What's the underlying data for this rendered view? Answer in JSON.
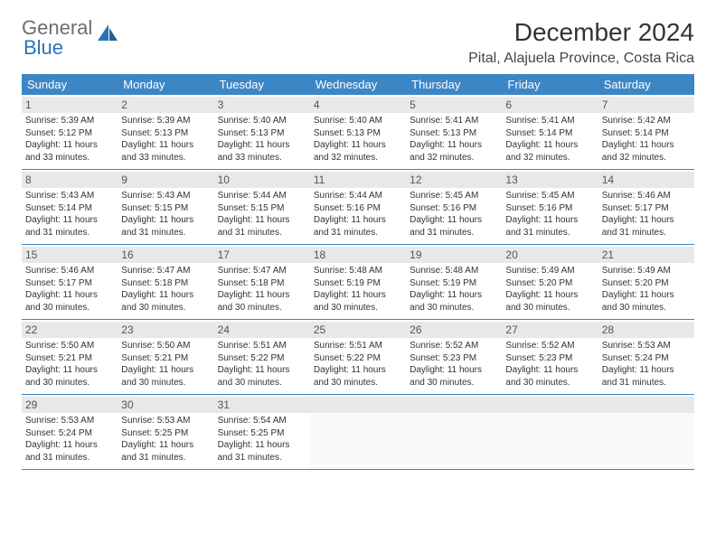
{
  "logo": {
    "part1": "General",
    "part2": "Blue"
  },
  "title": "December 2024",
  "location": "Pital, Alajuela Province, Costa Rica",
  "colors": {
    "header_bg": "#3d86c6",
    "header_text": "#ffffff",
    "daynum_bg": "#e8e8e8",
    "rule": "#3d86c6",
    "logo_gray": "#6d6d6d",
    "logo_blue": "#2873b8",
    "body_text": "#333333"
  },
  "typography": {
    "title_fontsize": 28,
    "subtitle_fontsize": 16,
    "dayhead_fontsize": 13,
    "daynum_fontsize": 12,
    "detail_fontsize": 10
  },
  "day_headers": [
    "Sunday",
    "Monday",
    "Tuesday",
    "Wednesday",
    "Thursday",
    "Friday",
    "Saturday"
  ],
  "weeks": [
    [
      {
        "num": "1",
        "sunrise": "Sunrise: 5:39 AM",
        "sunset": "Sunset: 5:12 PM",
        "daylight": "Daylight: 11 hours and 33 minutes."
      },
      {
        "num": "2",
        "sunrise": "Sunrise: 5:39 AM",
        "sunset": "Sunset: 5:13 PM",
        "daylight": "Daylight: 11 hours and 33 minutes."
      },
      {
        "num": "3",
        "sunrise": "Sunrise: 5:40 AM",
        "sunset": "Sunset: 5:13 PM",
        "daylight": "Daylight: 11 hours and 33 minutes."
      },
      {
        "num": "4",
        "sunrise": "Sunrise: 5:40 AM",
        "sunset": "Sunset: 5:13 PM",
        "daylight": "Daylight: 11 hours and 32 minutes."
      },
      {
        "num": "5",
        "sunrise": "Sunrise: 5:41 AM",
        "sunset": "Sunset: 5:13 PM",
        "daylight": "Daylight: 11 hours and 32 minutes."
      },
      {
        "num": "6",
        "sunrise": "Sunrise: 5:41 AM",
        "sunset": "Sunset: 5:14 PM",
        "daylight": "Daylight: 11 hours and 32 minutes."
      },
      {
        "num": "7",
        "sunrise": "Sunrise: 5:42 AM",
        "sunset": "Sunset: 5:14 PM",
        "daylight": "Daylight: 11 hours and 32 minutes."
      }
    ],
    [
      {
        "num": "8",
        "sunrise": "Sunrise: 5:43 AM",
        "sunset": "Sunset: 5:14 PM",
        "daylight": "Daylight: 11 hours and 31 minutes."
      },
      {
        "num": "9",
        "sunrise": "Sunrise: 5:43 AM",
        "sunset": "Sunset: 5:15 PM",
        "daylight": "Daylight: 11 hours and 31 minutes."
      },
      {
        "num": "10",
        "sunrise": "Sunrise: 5:44 AM",
        "sunset": "Sunset: 5:15 PM",
        "daylight": "Daylight: 11 hours and 31 minutes."
      },
      {
        "num": "11",
        "sunrise": "Sunrise: 5:44 AM",
        "sunset": "Sunset: 5:16 PM",
        "daylight": "Daylight: 11 hours and 31 minutes."
      },
      {
        "num": "12",
        "sunrise": "Sunrise: 5:45 AM",
        "sunset": "Sunset: 5:16 PM",
        "daylight": "Daylight: 11 hours and 31 minutes."
      },
      {
        "num": "13",
        "sunrise": "Sunrise: 5:45 AM",
        "sunset": "Sunset: 5:16 PM",
        "daylight": "Daylight: 11 hours and 31 minutes."
      },
      {
        "num": "14",
        "sunrise": "Sunrise: 5:46 AM",
        "sunset": "Sunset: 5:17 PM",
        "daylight": "Daylight: 11 hours and 31 minutes."
      }
    ],
    [
      {
        "num": "15",
        "sunrise": "Sunrise: 5:46 AM",
        "sunset": "Sunset: 5:17 PM",
        "daylight": "Daylight: 11 hours and 30 minutes."
      },
      {
        "num": "16",
        "sunrise": "Sunrise: 5:47 AM",
        "sunset": "Sunset: 5:18 PM",
        "daylight": "Daylight: 11 hours and 30 minutes."
      },
      {
        "num": "17",
        "sunrise": "Sunrise: 5:47 AM",
        "sunset": "Sunset: 5:18 PM",
        "daylight": "Daylight: 11 hours and 30 minutes."
      },
      {
        "num": "18",
        "sunrise": "Sunrise: 5:48 AM",
        "sunset": "Sunset: 5:19 PM",
        "daylight": "Daylight: 11 hours and 30 minutes."
      },
      {
        "num": "19",
        "sunrise": "Sunrise: 5:48 AM",
        "sunset": "Sunset: 5:19 PM",
        "daylight": "Daylight: 11 hours and 30 minutes."
      },
      {
        "num": "20",
        "sunrise": "Sunrise: 5:49 AM",
        "sunset": "Sunset: 5:20 PM",
        "daylight": "Daylight: 11 hours and 30 minutes."
      },
      {
        "num": "21",
        "sunrise": "Sunrise: 5:49 AM",
        "sunset": "Sunset: 5:20 PM",
        "daylight": "Daylight: 11 hours and 30 minutes."
      }
    ],
    [
      {
        "num": "22",
        "sunrise": "Sunrise: 5:50 AM",
        "sunset": "Sunset: 5:21 PM",
        "daylight": "Daylight: 11 hours and 30 minutes."
      },
      {
        "num": "23",
        "sunrise": "Sunrise: 5:50 AM",
        "sunset": "Sunset: 5:21 PM",
        "daylight": "Daylight: 11 hours and 30 minutes."
      },
      {
        "num": "24",
        "sunrise": "Sunrise: 5:51 AM",
        "sunset": "Sunset: 5:22 PM",
        "daylight": "Daylight: 11 hours and 30 minutes."
      },
      {
        "num": "25",
        "sunrise": "Sunrise: 5:51 AM",
        "sunset": "Sunset: 5:22 PM",
        "daylight": "Daylight: 11 hours and 30 minutes."
      },
      {
        "num": "26",
        "sunrise": "Sunrise: 5:52 AM",
        "sunset": "Sunset: 5:23 PM",
        "daylight": "Daylight: 11 hours and 30 minutes."
      },
      {
        "num": "27",
        "sunrise": "Sunrise: 5:52 AM",
        "sunset": "Sunset: 5:23 PM",
        "daylight": "Daylight: 11 hours and 30 minutes."
      },
      {
        "num": "28",
        "sunrise": "Sunrise: 5:53 AM",
        "sunset": "Sunset: 5:24 PM",
        "daylight": "Daylight: 11 hours and 31 minutes."
      }
    ],
    [
      {
        "num": "29",
        "sunrise": "Sunrise: 5:53 AM",
        "sunset": "Sunset: 5:24 PM",
        "daylight": "Daylight: 11 hours and 31 minutes."
      },
      {
        "num": "30",
        "sunrise": "Sunrise: 5:53 AM",
        "sunset": "Sunset: 5:25 PM",
        "daylight": "Daylight: 11 hours and 31 minutes."
      },
      {
        "num": "31",
        "sunrise": "Sunrise: 5:54 AM",
        "sunset": "Sunset: 5:25 PM",
        "daylight": "Daylight: 11 hours and 31 minutes."
      },
      {
        "empty": true
      },
      {
        "empty": true
      },
      {
        "empty": true
      },
      {
        "empty": true
      }
    ]
  ]
}
